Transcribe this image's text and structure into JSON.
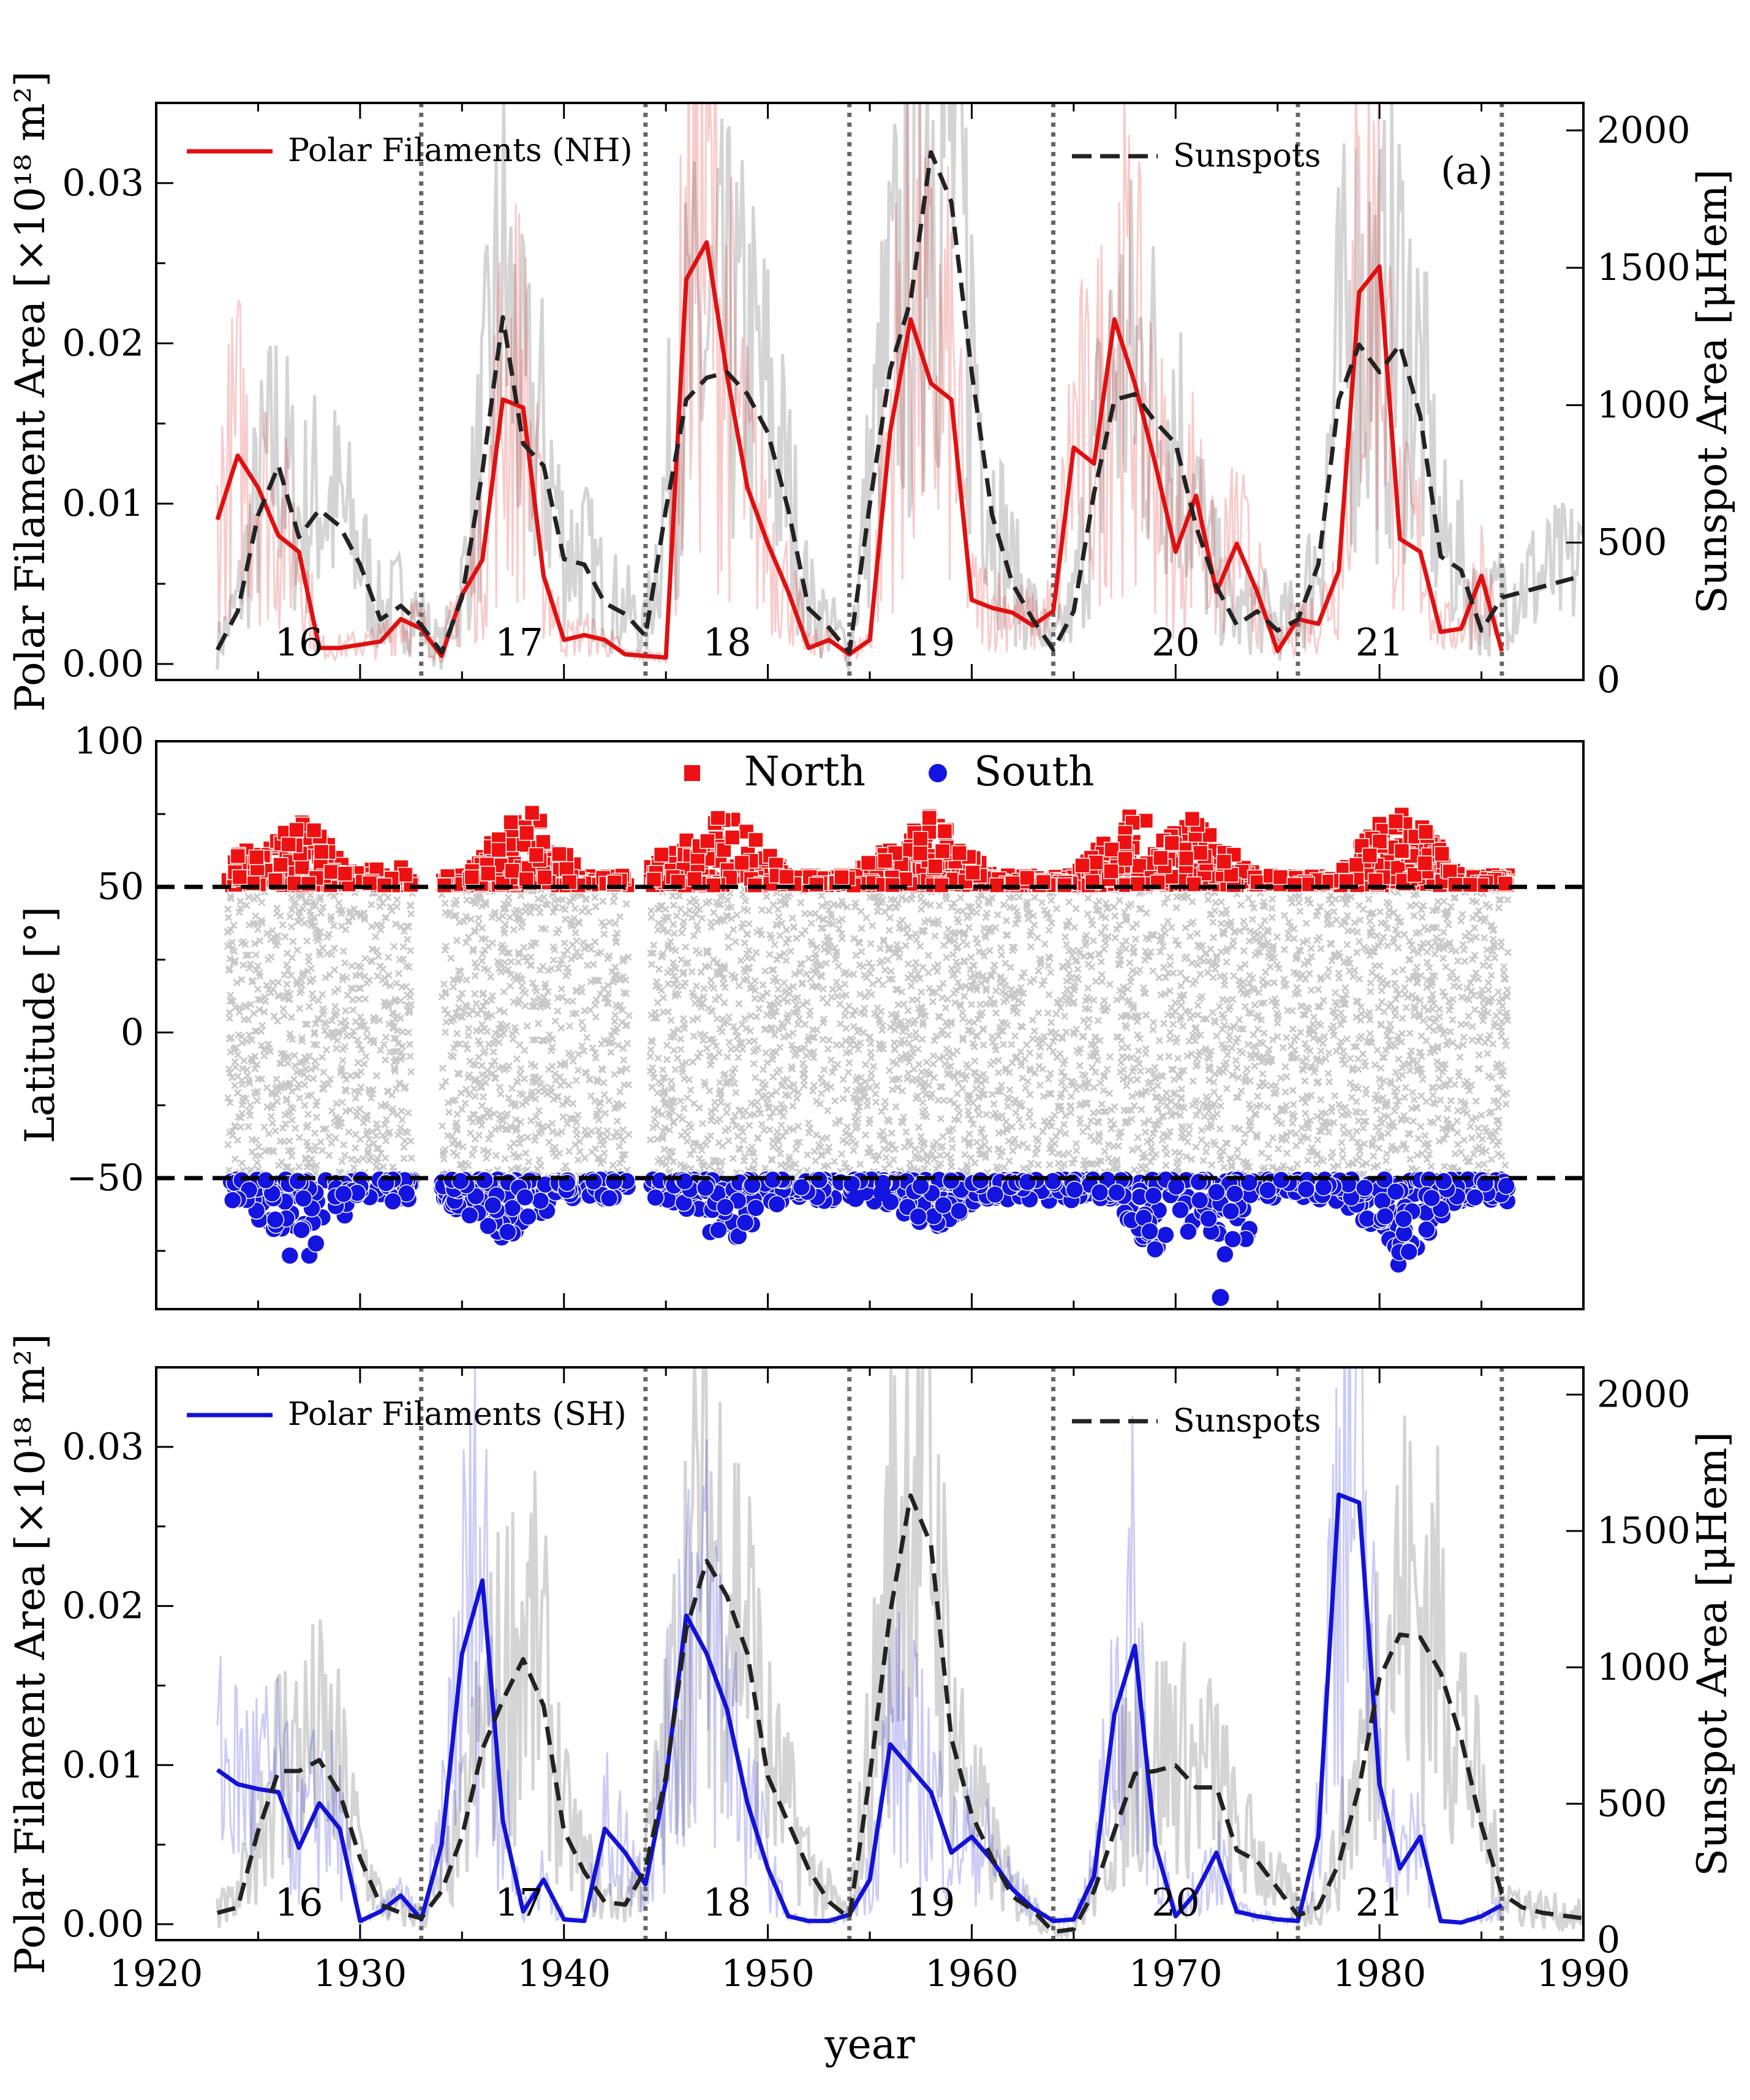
{
  "chart_data": [
    {
      "panel": "a",
      "type": "line",
      "annotation": "(a)",
      "ylabel": "Polar Filament Area [×10¹⁸ m²]",
      "ylabel_right": "Sunspot Area [μHem]",
      "xlim": [
        1920,
        1990
      ],
      "ylim": [
        -0.001,
        0.035
      ],
      "ylim_right": [
        0,
        2100
      ],
      "yticks": [
        "0.00",
        "0.01",
        "0.02",
        "0.03"
      ],
      "yticks_right": [
        "0",
        "500",
        "1000",
        "1500",
        "2000"
      ],
      "legend": {
        "filaments": "Polar Filaments (NH)",
        "sunspots": "Sunspots"
      },
      "cycle_minima": [
        1933,
        1944,
        1954,
        1964,
        1976,
        1986
      ],
      "cycle_labels": [
        {
          "year": 1927.0,
          "label": "16"
        },
        {
          "year": 1937.8,
          "label": "17"
        },
        {
          "year": 1948.0,
          "label": "18"
        },
        {
          "year": 1958.0,
          "label": "19"
        },
        {
          "year": 1970.0,
          "label": "20"
        },
        {
          "year": 1980.0,
          "label": "21"
        }
      ],
      "series": [
        {
          "name": "Polar Filaments (NH)",
          "color": "#e01010",
          "x": [
            1923,
            1924,
            1925,
            1926,
            1927,
            1928,
            1929,
            1930,
            1931,
            1932,
            1933,
            1934,
            1935,
            1936,
            1937,
            1938,
            1939,
            1940,
            1941,
            1942,
            1943,
            1944,
            1945,
            1946,
            1947,
            1948,
            1949,
            1950,
            1951,
            1952,
            1953,
            1954,
            1955,
            1956,
            1957,
            1958,
            1959,
            1960,
            1961,
            1962,
            1963,
            1964,
            1965,
            1966,
            1967,
            1968,
            1969,
            1970,
            1971,
            1972,
            1973,
            1974,
            1975,
            1976,
            1977,
            1978,
            1979,
            1980,
            1981,
            1982,
            1983,
            1984,
            1985,
            1986
          ],
          "y": [
            0.009,
            0.013,
            0.011,
            0.008,
            0.007,
            0.001,
            0.001,
            0.0012,
            0.0014,
            0.0028,
            0.0022,
            0.0005,
            0.0043,
            0.0065,
            0.0165,
            0.016,
            0.0055,
            0.0015,
            0.0018,
            0.0015,
            0.0006,
            0.0005,
            0.0004,
            0.024,
            0.0263,
            0.018,
            0.011,
            0.0075,
            0.0045,
            0.001,
            0.0015,
            0.0006,
            0.0015,
            0.0145,
            0.0215,
            0.0175,
            0.0165,
            0.004,
            0.0035,
            0.0032,
            0.0024,
            0.0033,
            0.0135,
            0.0125,
            0.0215,
            0.0175,
            0.0125,
            0.007,
            0.0105,
            0.0045,
            0.0075,
            0.0045,
            0.0008,
            0.0028,
            0.0025,
            0.0058,
            0.0232,
            0.0248,
            0.0078,
            0.007,
            0.002,
            0.0022,
            0.0055,
            0.0008
          ]
        },
        {
          "name": "Sunspots",
          "color": "#222222",
          "x": [
            1923,
            1924,
            1925,
            1926,
            1927,
            1928,
            1929,
            1930,
            1931,
            1932,
            1933,
            1934,
            1935,
            1936,
            1937,
            1938,
            1939,
            1940,
            1941,
            1942,
            1943,
            1944,
            1945,
            1946,
            1947,
            1948,
            1949,
            1950,
            1951,
            1952,
            1953,
            1954,
            1955,
            1956,
            1957,
            1958,
            1959,
            1960,
            1961,
            1962,
            1963,
            1964,
            1965,
            1966,
            1967,
            1968,
            1969,
            1970,
            1971,
            1972,
            1973,
            1974,
            1975,
            1976,
            1977,
            1978,
            1979,
            1980,
            1981,
            1982,
            1983,
            1984,
            1985,
            1986,
            1987,
            1988,
            1990
          ],
          "y": [
            110,
            250,
            600,
            780,
            520,
            620,
            560,
            420,
            220,
            270,
            200,
            100,
            300,
            760,
            1320,
            860,
            780,
            440,
            420,
            280,
            240,
            160,
            620,
            1020,
            1100,
            1120,
            1040,
            900,
            620,
            260,
            190,
            100,
            640,
            1130,
            1380,
            1920,
            1740,
            1120,
            600,
            350,
            220,
            110,
            250,
            680,
            1020,
            1040,
            940,
            860,
            560,
            340,
            200,
            250,
            180,
            220,
            420,
            1020,
            1220,
            1120,
            1220,
            960,
            450,
            400,
            180,
            300,
            320,
            340,
            380
          ]
        }
      ]
    },
    {
      "panel": "b",
      "type": "scatter",
      "ylabel": "Latitude [°]",
      "xlim": [
        1920,
        1990
      ],
      "ylim": [
        -95,
        100
      ],
      "yticks": [
        "−50",
        "0",
        "50",
        "100"
      ],
      "threshold_lines": [
        50,
        -50
      ],
      "legend": {
        "north": "North",
        "south": "South"
      },
      "colors": {
        "north": "#ee1111",
        "south": "#1414e0",
        "background": "#c8c8c8"
      },
      "north_extent_by_year": [
        {
          "year": 1925,
          "max_lat": 66
        },
        {
          "year": 1927,
          "max_lat": 75
        },
        {
          "year": 1932,
          "max_lat": 58
        },
        {
          "year": 1938,
          "max_lat": 80
        },
        {
          "year": 1946,
          "max_lat": 66
        },
        {
          "year": 1948,
          "max_lat": 78
        },
        {
          "year": 1957,
          "max_lat": 70
        },
        {
          "year": 1958,
          "max_lat": 76
        },
        {
          "year": 1968,
          "max_lat": 78
        },
        {
          "year": 1971,
          "max_lat": 77
        },
        {
          "year": 1981,
          "max_lat": 82
        }
      ],
      "south_extent_by_year": [
        {
          "year": 1927,
          "min_lat": -83
        },
        {
          "year": 1937,
          "min_lat": -74
        },
        {
          "year": 1948,
          "min_lat": -73
        },
        {
          "year": 1958,
          "min_lat": -68
        },
        {
          "year": 1969,
          "min_lat": -75
        },
        {
          "year": 1972,
          "min_lat": -91
        },
        {
          "year": 1981,
          "min_lat": -82
        }
      ]
    },
    {
      "panel": "c",
      "type": "line",
      "xlabel": "year",
      "ylabel": "Polar Filament Area [×10¹⁸ m²]",
      "ylabel_right": "Sunspot Area [μHem]",
      "xlim": [
        1920,
        1990
      ],
      "ylim": [
        -0.001,
        0.035
      ],
      "ylim_right": [
        0,
        2100
      ],
      "xticks": [
        "1920",
        "1930",
        "1940",
        "1950",
        "1960",
        "1970",
        "1980",
        "1990"
      ],
      "yticks": [
        "0.00",
        "0.01",
        "0.02",
        "0.03"
      ],
      "yticks_right": [
        "0",
        "500",
        "1000",
        "1500",
        "2000"
      ],
      "legend": {
        "filaments": "Polar Filaments (SH)",
        "sunspots": "Sunspots"
      },
      "cycle_minima": [
        1933,
        1944,
        1954,
        1964,
        1976,
        1986
      ],
      "cycle_labels": [
        {
          "year": 1927.0,
          "label": "16"
        },
        {
          "year": 1937.8,
          "label": "17"
        },
        {
          "year": 1948.0,
          "label": "18"
        },
        {
          "year": 1958.0,
          "label": "19"
        },
        {
          "year": 1970.0,
          "label": "20"
        },
        {
          "year": 1980.0,
          "label": "21"
        }
      ],
      "series": [
        {
          "name": "Polar Filaments (SH)",
          "color": "#1212d8",
          "x": [
            1923,
            1924,
            1925,
            1926,
            1927,
            1928,
            1929,
            1930,
            1931,
            1932,
            1933,
            1934,
            1935,
            1936,
            1937,
            1938,
            1939,
            1940,
            1941,
            1942,
            1943,
            1944,
            1945,
            1946,
            1947,
            1948,
            1949,
            1950,
            1951,
            1952,
            1953,
            1954,
            1955,
            1956,
            1957,
            1958,
            1959,
            1960,
            1961,
            1962,
            1963,
            1964,
            1965,
            1966,
            1967,
            1968,
            1969,
            1970,
            1971,
            1972,
            1973,
            1974,
            1975,
            1976,
            1977,
            1978,
            1979,
            1980,
            1981,
            1982,
            1983,
            1984,
            1985,
            1986
          ],
          "y": [
            0.0097,
            0.0088,
            0.0085,
            0.0083,
            0.0048,
            0.0076,
            0.006,
            0.0002,
            0.0008,
            0.0018,
            0.0003,
            0.005,
            0.017,
            0.0216,
            0.0065,
            0.0008,
            0.0028,
            0.0003,
            0.0002,
            0.006,
            0.0045,
            0.0025,
            0.009,
            0.0194,
            0.017,
            0.0135,
            0.0076,
            0.0035,
            0.0005,
            0.0002,
            0.0002,
            0.0006,
            0.0028,
            0.0113,
            0.0098,
            0.0083,
            0.0045,
            0.0055,
            0.004,
            0.0022,
            0.001,
            0.0002,
            0.0003,
            0.003,
            0.0132,
            0.0175,
            0.005,
            0.0005,
            0.002,
            0.0045,
            0.0008,
            0.0005,
            0.0003,
            0.0002,
            0.0055,
            0.027,
            0.0265,
            0.0088,
            0.0035,
            0.0055,
            0.0002,
            0.0001,
            0.0005,
            0.0012
          ]
        },
        {
          "name": "Sunspots",
          "color": "#222222",
          "x": [
            1923,
            1924,
            1925,
            1926,
            1927,
            1928,
            1929,
            1930,
            1931,
            1932,
            1933,
            1934,
            1935,
            1936,
            1937,
            1938,
            1939,
            1940,
            1941,
            1942,
            1943,
            1944,
            1945,
            1946,
            1947,
            1948,
            1949,
            1950,
            1951,
            1952,
            1953,
            1954,
            1955,
            1956,
            1957,
            1958,
            1959,
            1960,
            1961,
            1962,
            1963,
            1964,
            1965,
            1966,
            1967,
            1968,
            1969,
            1970,
            1971,
            1972,
            1973,
            1974,
            1975,
            1976,
            1977,
            1978,
            1979,
            1980,
            1981,
            1982,
            1983,
            1984,
            1985,
            1986,
            1987,
            1988,
            1990
          ],
          "y": [
            100,
            120,
            400,
            620,
            620,
            660,
            540,
            300,
            130,
            100,
            80,
            180,
            380,
            700,
            880,
            1030,
            860,
            400,
            250,
            140,
            130,
            260,
            600,
            1140,
            1390,
            1260,
            1050,
            600,
            430,
            260,
            140,
            80,
            600,
            1200,
            1630,
            1450,
            740,
            460,
            300,
            160,
            110,
            30,
            40,
            180,
            400,
            610,
            620,
            640,
            560,
            560,
            330,
            290,
            190,
            90,
            120,
            280,
            560,
            960,
            1120,
            1110,
            980,
            740,
            420,
            170,
            120,
            100,
            80
          ]
        }
      ]
    }
  ]
}
